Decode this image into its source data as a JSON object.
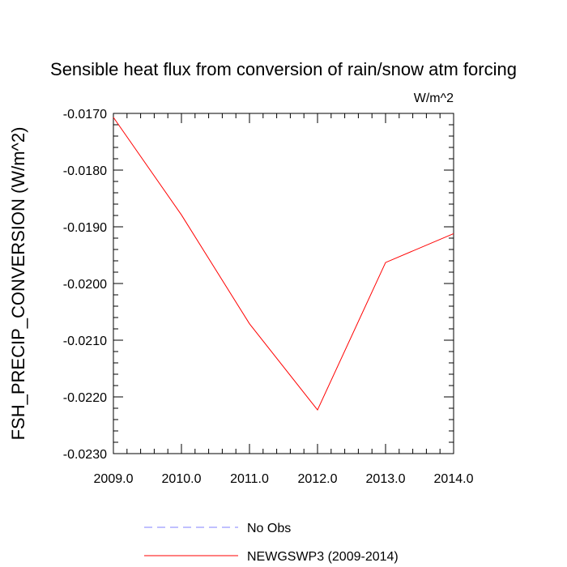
{
  "chart_data": {
    "type": "line",
    "title": "Sensible heat flux from conversion of rain/snow atm forcing",
    "units": "W/m^2",
    "xlabel": "",
    "ylabel": "FSH_PRECIP_CONVERSION  (W/m^2)",
    "xlim": [
      2009.0,
      2014.0
    ],
    "ylim": [
      -0.023,
      -0.017
    ],
    "x_ticks": [
      "2009.0",
      "2010.0",
      "2011.0",
      "2012.0",
      "2013.0",
      "2014.0"
    ],
    "y_ticks": [
      "-0.0170",
      "-0.0180",
      "-0.0190",
      "-0.0200",
      "-0.0210",
      "-0.0220",
      "-0.0230"
    ],
    "grid": false,
    "legend_position": "bottom",
    "series": [
      {
        "name": "NEWGSWP3 (2009-2014)",
        "color": "#ff0000",
        "style": "solid",
        "x": [
          2009.0,
          2010.0,
          2011.0,
          2012.0,
          2013.0,
          2014.0
        ],
        "values": [
          -0.01707,
          -0.01879,
          -0.02071,
          -0.02223,
          -0.01963,
          -0.01912
        ]
      }
    ],
    "legend": [
      {
        "label": "No Obs",
        "color": "#8080ff",
        "style": "dashed"
      },
      {
        "label": "NEWGSWP3 (2009-2014)",
        "color": "#ff0000",
        "style": "solid"
      }
    ]
  }
}
